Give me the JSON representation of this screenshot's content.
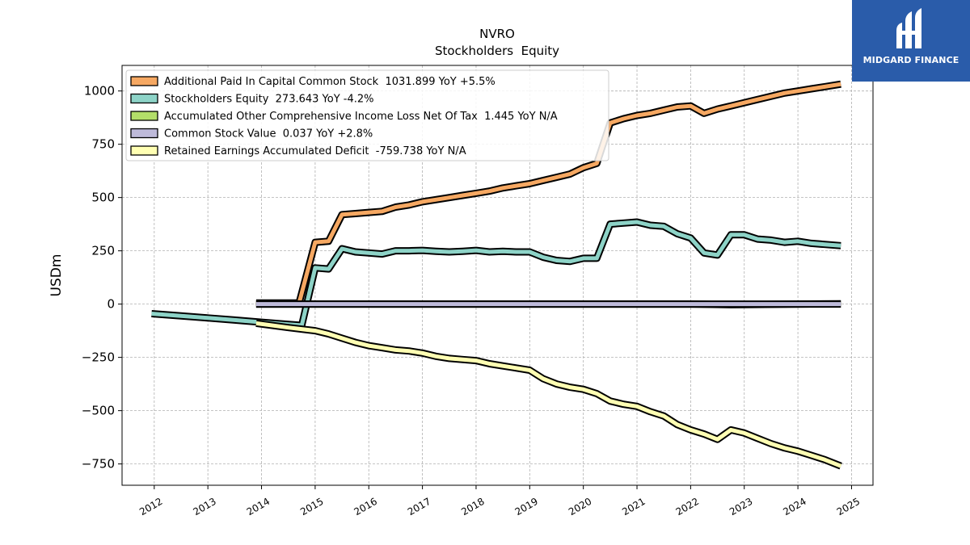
{
  "logo": {
    "text": "MIDGARD FINANCE",
    "bg_color": "#2a5caa"
  },
  "chart_data": {
    "type": "line",
    "title": "NVRO",
    "subtitle": "Stockholders  Equity",
    "ylabel": "USDm",
    "xlabel": "",
    "xlim": [
      2011.4,
      2025.4
    ],
    "ylim": [
      -850,
      1120
    ],
    "x_ticks": [
      2012,
      2013,
      2014,
      2015,
      2016,
      2017,
      2018,
      2019,
      2020,
      2021,
      2022,
      2023,
      2024,
      2025
    ],
    "x_tick_labels": [
      "2012",
      "2013",
      "2014",
      "2015",
      "2016",
      "2017",
      "2018",
      "2019",
      "2020",
      "2021",
      "2022",
      "2023",
      "2024",
      "2025"
    ],
    "y_ticks": [
      -750,
      -500,
      -250,
      0,
      250,
      500,
      750,
      1000
    ],
    "y_tick_labels": [
      "−750",
      "−500",
      "−250",
      "0",
      "250",
      "500",
      "750",
      "1000"
    ],
    "grid": true,
    "legend_position": "top-left",
    "series": [
      {
        "name": "Additional Paid In Capital Common Stock",
        "legend_label": "Additional Paid In Capital Common Stock  1031.899 YoY +5.5%",
        "color": "#f6a862",
        "x": [
          2013.9,
          2014.7,
          2015.0,
          2015.25,
          2015.5,
          2015.75,
          2016.0,
          2016.25,
          2016.5,
          2016.75,
          2017.0,
          2017.25,
          2017.5,
          2017.75,
          2018.0,
          2018.25,
          2018.5,
          2018.75,
          2019.0,
          2019.25,
          2019.5,
          2019.75,
          2020.0,
          2020.25,
          2020.5,
          2020.75,
          2021.0,
          2021.25,
          2021.5,
          2021.75,
          2022.0,
          2022.25,
          2022.5,
          2022.75,
          2023.0,
          2023.25,
          2023.5,
          2023.75,
          2024.0,
          2024.25,
          2024.5,
          2024.8
        ],
        "values": [
          5,
          5,
          290,
          295,
          420,
          425,
          430,
          435,
          455,
          465,
          480,
          490,
          500,
          510,
          520,
          530,
          545,
          555,
          565,
          580,
          595,
          610,
          640,
          660,
          850,
          870,
          885,
          895,
          910,
          925,
          930,
          895,
          915,
          930,
          945,
          960,
          975,
          990,
          1000,
          1010,
          1020,
          1032
        ]
      },
      {
        "name": "Stockholders Equity",
        "legend_label": "Stockholders Equity  273.643 YoY -4.2%",
        "color": "#8dd3c7",
        "x": [
          2011.95,
          2012.5,
          2013.0,
          2013.5,
          2014.0,
          2014.5,
          2014.75,
          2015.0,
          2015.25,
          2015.5,
          2015.75,
          2016.0,
          2016.25,
          2016.5,
          2016.75,
          2017.0,
          2017.25,
          2017.5,
          2017.75,
          2018.0,
          2018.25,
          2018.5,
          2018.75,
          2019.0,
          2019.25,
          2019.5,
          2019.75,
          2020.0,
          2020.25,
          2020.5,
          2020.75,
          2021.0,
          2021.25,
          2021.5,
          2021.75,
          2022.0,
          2022.25,
          2022.5,
          2022.75,
          2023.0,
          2023.25,
          2023.5,
          2023.75,
          2024.0,
          2024.25,
          2024.5,
          2024.8
        ],
        "values": [
          -45,
          -55,
          -65,
          -75,
          -85,
          -95,
          -100,
          170,
          165,
          260,
          245,
          240,
          235,
          250,
          250,
          252,
          248,
          245,
          248,
          252,
          245,
          248,
          245,
          245,
          220,
          205,
          200,
          215,
          215,
          375,
          380,
          385,
          370,
          365,
          330,
          310,
          240,
          230,
          325,
          325,
          305,
          300,
          290,
          295,
          285,
          280,
          274
        ]
      },
      {
        "name": "Accumulated Other Comprehensive Income Loss Net Of Tax",
        "legend_label": "Accumulated Other Comprehensive Income Loss Net Of Tax  1.445 YoY N/A",
        "color": "#b3de69",
        "x": [
          2013.9,
          2015.0,
          2016.0,
          2017.0,
          2018.0,
          2019.0,
          2020.0,
          2021.0,
          2022.0,
          2022.75,
          2023.0,
          2024.0,
          2024.8
        ],
        "values": [
          0,
          0,
          0,
          0,
          0,
          0,
          0,
          0,
          0,
          -3,
          -2,
          0,
          1.445
        ]
      },
      {
        "name": "Common Stock Value",
        "legend_label": "Common Stock Value  0.037 YoY +2.8%",
        "color": "#bebada",
        "x": [
          2013.9,
          2015.0,
          2016.0,
          2017.0,
          2018.0,
          2019.0,
          2020.0,
          2021.0,
          2022.0,
          2023.0,
          2024.0,
          2024.8
        ],
        "values": [
          0.03,
          0.03,
          0.03,
          0.03,
          0.03,
          0.03,
          0.03,
          0.03,
          0.03,
          0.035,
          0.036,
          0.037
        ]
      },
      {
        "name": "Retained Earnings Accumulated Deficit",
        "legend_label": "Retained Earnings Accumulated Deficit  -759.738 YoY N/A",
        "color": "#ffffb3",
        "x": [
          2013.9,
          2014.5,
          2015.0,
          2015.25,
          2015.5,
          2015.75,
          2016.0,
          2016.25,
          2016.5,
          2016.75,
          2017.0,
          2017.25,
          2017.5,
          2017.75,
          2018.0,
          2018.25,
          2018.5,
          2018.75,
          2019.0,
          2019.25,
          2019.5,
          2019.75,
          2020.0,
          2020.25,
          2020.5,
          2020.75,
          2021.0,
          2021.25,
          2021.5,
          2021.75,
          2022.0,
          2022.25,
          2022.5,
          2022.75,
          2023.0,
          2023.25,
          2023.5,
          2023.75,
          2024.0,
          2024.25,
          2024.5,
          2024.8
        ],
        "values": [
          -90,
          -110,
          -125,
          -140,
          -160,
          -180,
          -195,
          -205,
          -215,
          -220,
          -230,
          -245,
          -255,
          -260,
          -265,
          -280,
          -290,
          -300,
          -310,
          -350,
          -375,
          -390,
          -400,
          -420,
          -455,
          -470,
          -480,
          -505,
          -525,
          -565,
          -590,
          -610,
          -635,
          -590,
          -605,
          -630,
          -655,
          -675,
          -690,
          -710,
          -730,
          -760
        ]
      }
    ]
  }
}
